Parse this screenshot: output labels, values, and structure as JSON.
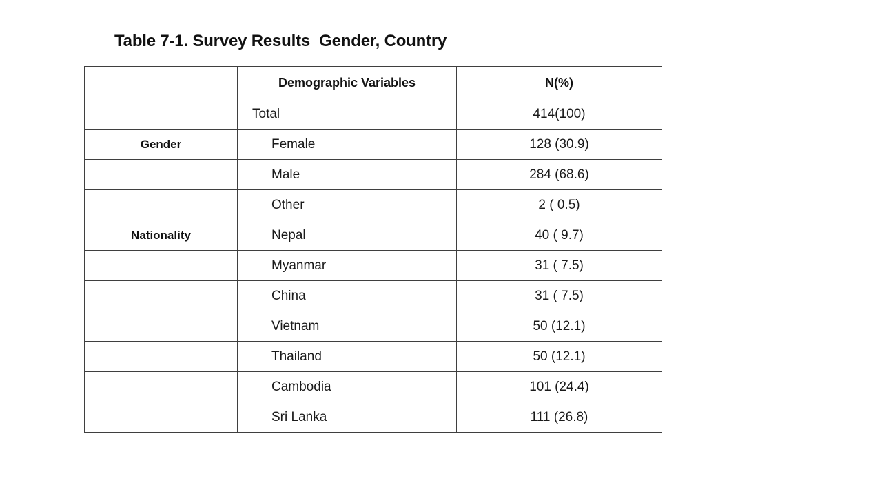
{
  "page": {
    "background_color": "#ffffff",
    "text_color": "#1a1a1a",
    "border_color": "#3f3f3f"
  },
  "title": "Table 7-1. Survey Results_Gender, Country",
  "table": {
    "headers": {
      "category": "",
      "variable": "Demographic Variables",
      "n_pct": "N(%)"
    },
    "rows": [
      {
        "category": "",
        "variable": "Total",
        "n_pct": "414(100)"
      },
      {
        "category": "Gender",
        "variable": "Female",
        "n_pct": "128 (30.9)"
      },
      {
        "category": "",
        "variable": "Male",
        "n_pct": "284 (68.6)"
      },
      {
        "category": "",
        "variable": "Other",
        "n_pct": "2 ( 0.5)"
      },
      {
        "category": "Nationality",
        "variable": "Nepal",
        "n_pct": "40 ( 9.7)"
      },
      {
        "category": "",
        "variable": "Myanmar",
        "n_pct": "31 ( 7.5)"
      },
      {
        "category": "",
        "variable": "China",
        "n_pct": "31 ( 7.5)"
      },
      {
        "category": "",
        "variable": "Vietnam",
        "n_pct": "50 (12.1)"
      },
      {
        "category": "",
        "variable": "Thailand",
        "n_pct": "50 (12.1)"
      },
      {
        "category": "",
        "variable": "Cambodia",
        "n_pct": "101 (24.4)"
      },
      {
        "category": "",
        "variable": "Sri Lanka",
        "n_pct": "111 (26.8)"
      }
    ]
  }
}
